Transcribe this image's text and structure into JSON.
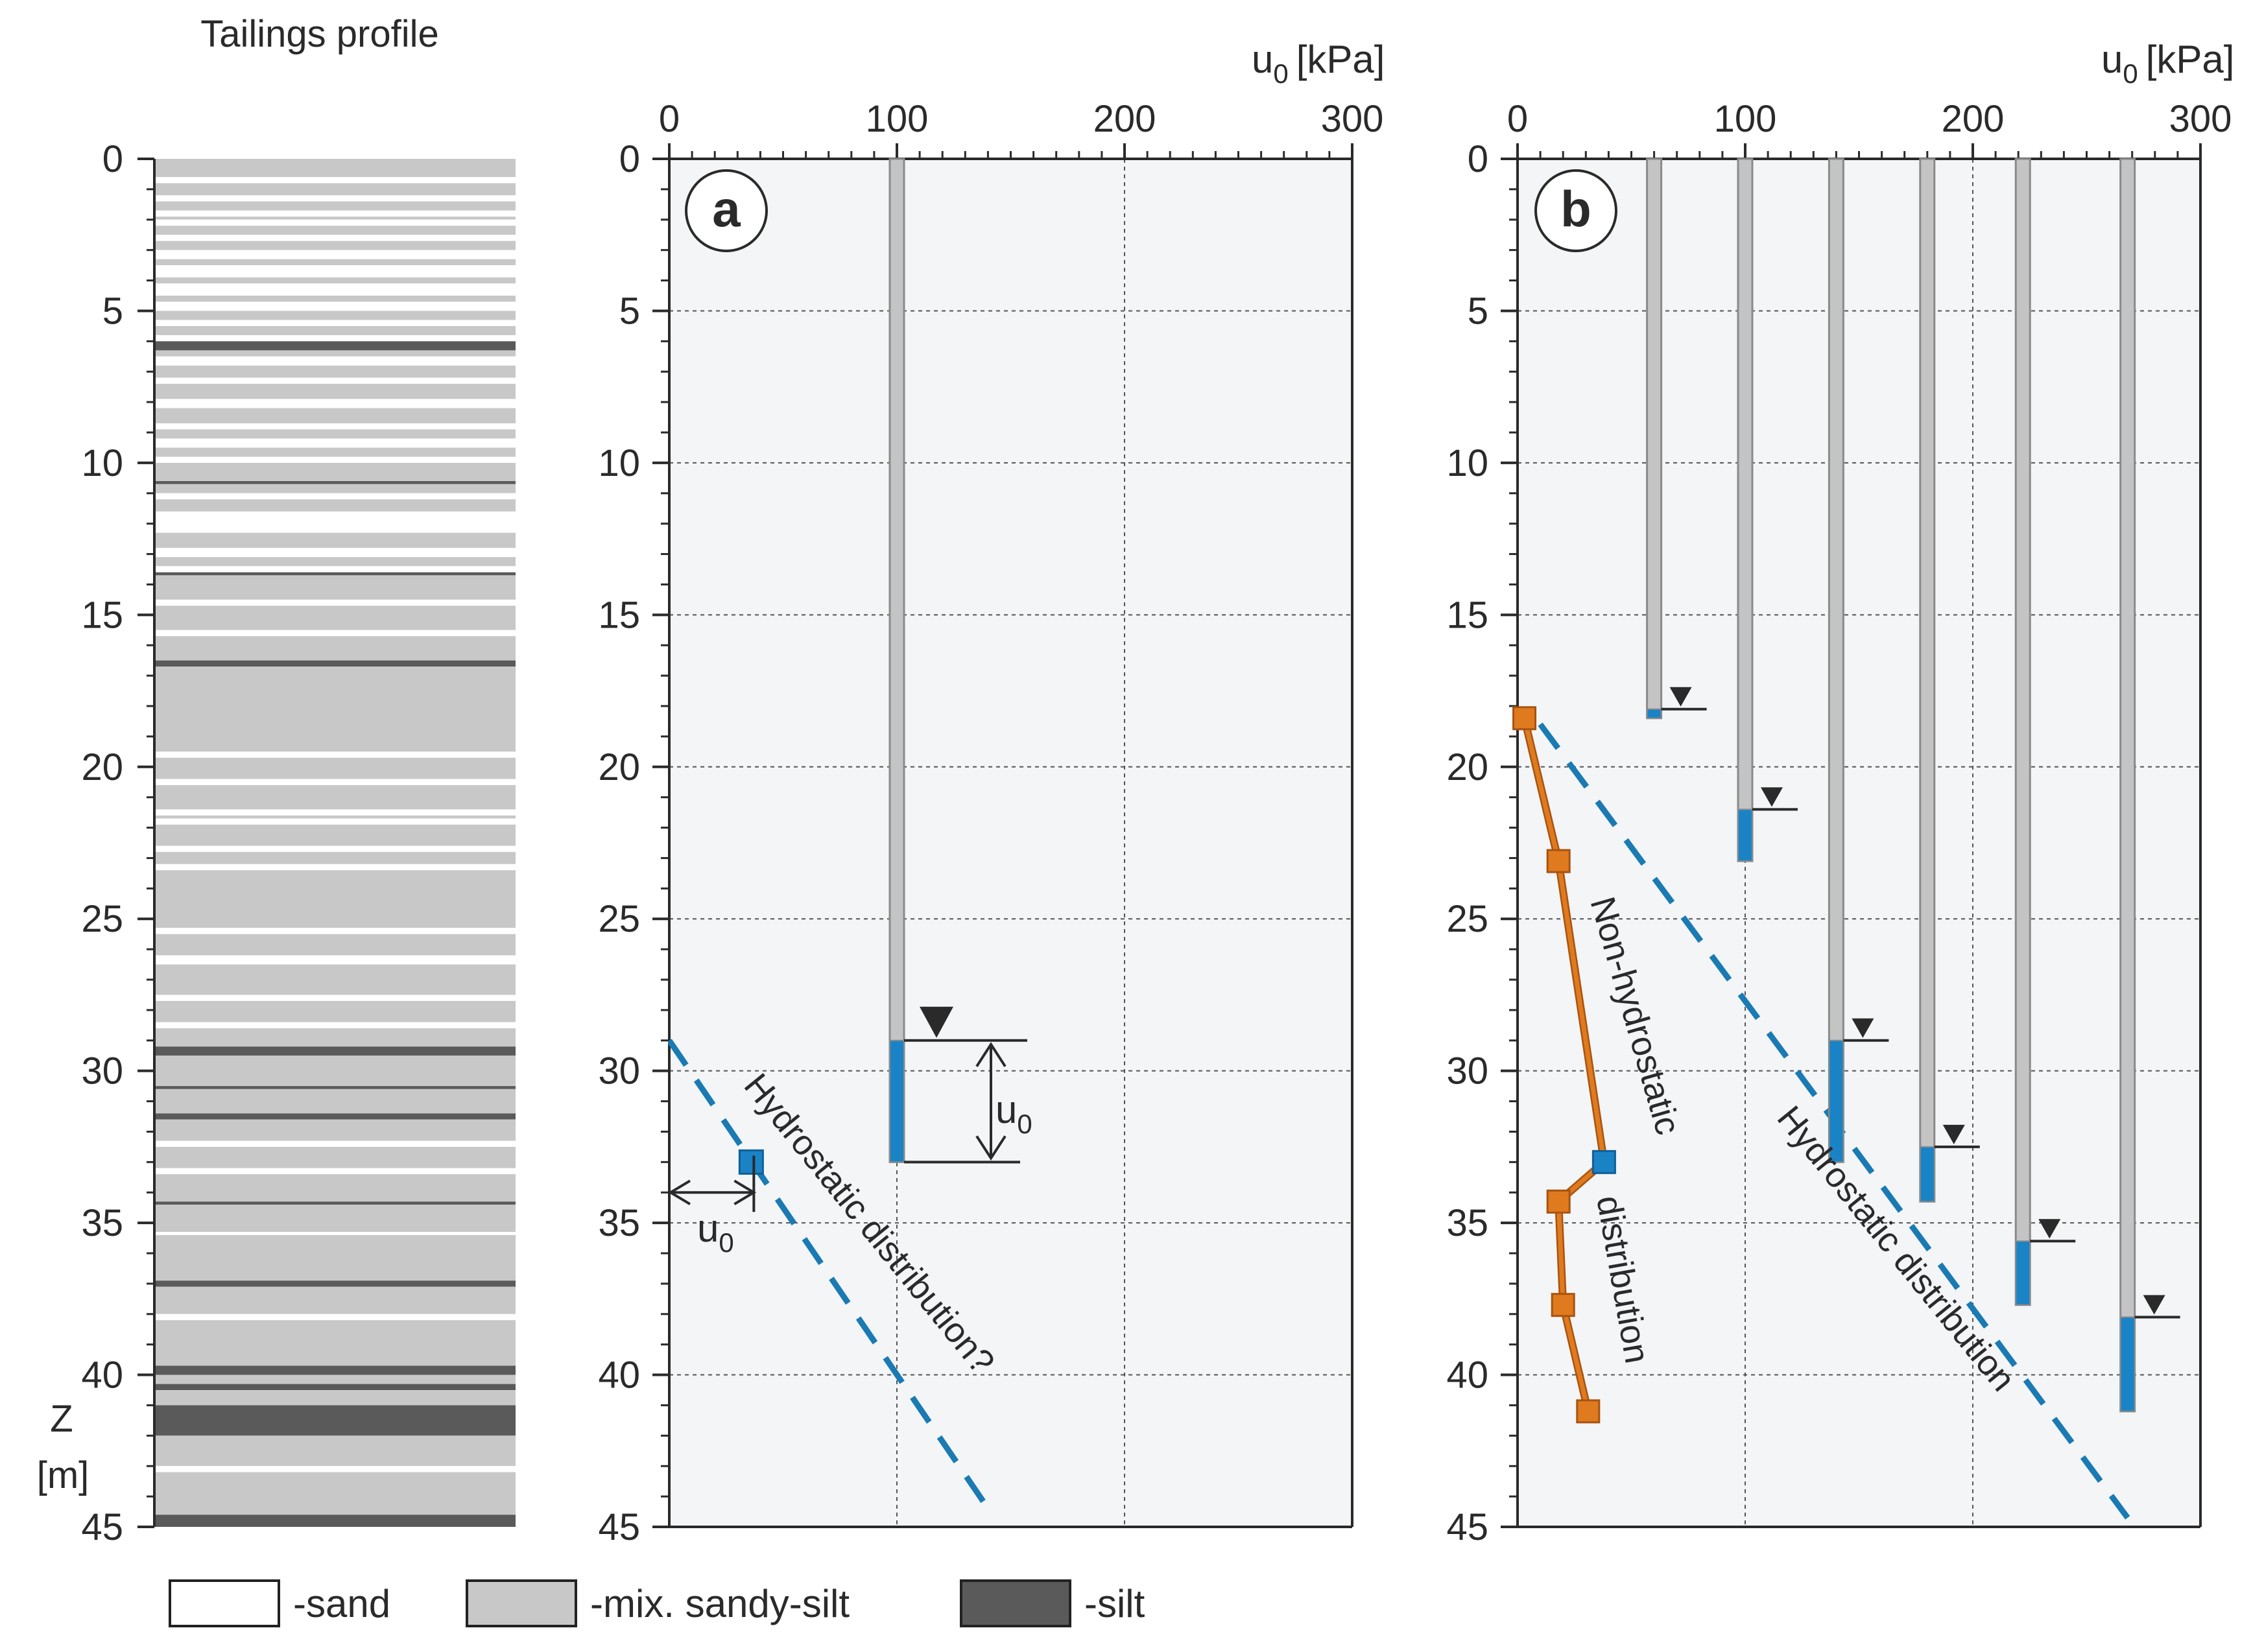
{
  "chart_data": [
    {
      "type": "profile",
      "title": "Tailings profile",
      "ylabel": "Z",
      "yunit": "[m]",
      "ylim": [
        0,
        45
      ],
      "yticks": [
        0,
        5,
        10,
        15,
        20,
        25,
        30,
        35,
        40,
        45
      ],
      "legend": [
        {
          "label": "-sand",
          "color": "#ffffff"
        },
        {
          "label": "-mix. sandy-silt",
          "color": "#c8c8c8"
        },
        {
          "label": "-silt",
          "color": "#5a5a5a"
        }
      ],
      "layers": [
        {
          "top": 0.0,
          "bottom": 0.6,
          "material": "mix"
        },
        {
          "top": 0.6,
          "bottom": 0.8,
          "material": "sand"
        },
        {
          "top": 0.8,
          "bottom": 1.2,
          "material": "mix"
        },
        {
          "top": 1.2,
          "bottom": 1.4,
          "material": "sand"
        },
        {
          "top": 1.4,
          "bottom": 1.7,
          "material": "mix"
        },
        {
          "top": 1.7,
          "bottom": 1.9,
          "material": "sand"
        },
        {
          "top": 1.9,
          "bottom": 2.0,
          "material": "mix"
        },
        {
          "top": 2.0,
          "bottom": 2.2,
          "material": "sand"
        },
        {
          "top": 2.2,
          "bottom": 2.5,
          "material": "mix"
        },
        {
          "top": 2.5,
          "bottom": 2.7,
          "material": "sand"
        },
        {
          "top": 2.7,
          "bottom": 3.0,
          "material": "mix"
        },
        {
          "top": 3.0,
          "bottom": 3.3,
          "material": "sand"
        },
        {
          "top": 3.3,
          "bottom": 3.5,
          "material": "mix"
        },
        {
          "top": 3.5,
          "bottom": 3.9,
          "material": "sand"
        },
        {
          "top": 3.9,
          "bottom": 4.1,
          "material": "mix"
        },
        {
          "top": 4.1,
          "bottom": 4.5,
          "material": "sand"
        },
        {
          "top": 4.5,
          "bottom": 4.7,
          "material": "mix"
        },
        {
          "top": 4.7,
          "bottom": 5.0,
          "material": "sand"
        },
        {
          "top": 5.0,
          "bottom": 5.3,
          "material": "mix"
        },
        {
          "top": 5.3,
          "bottom": 5.5,
          "material": "sand"
        },
        {
          "top": 5.5,
          "bottom": 5.8,
          "material": "mix"
        },
        {
          "top": 5.8,
          "bottom": 6.0,
          "material": "sand"
        },
        {
          "top": 6.0,
          "bottom": 6.3,
          "material": "silt"
        },
        {
          "top": 6.3,
          "bottom": 6.5,
          "material": "mix"
        },
        {
          "top": 6.5,
          "bottom": 6.8,
          "material": "sand"
        },
        {
          "top": 6.8,
          "bottom": 7.2,
          "material": "mix"
        },
        {
          "top": 7.2,
          "bottom": 7.4,
          "material": "sand"
        },
        {
          "top": 7.4,
          "bottom": 7.9,
          "material": "mix"
        },
        {
          "top": 7.9,
          "bottom": 8.2,
          "material": "sand"
        },
        {
          "top": 8.2,
          "bottom": 8.7,
          "material": "mix"
        },
        {
          "top": 8.7,
          "bottom": 8.9,
          "material": "sand"
        },
        {
          "top": 8.9,
          "bottom": 9.2,
          "material": "mix"
        },
        {
          "top": 9.2,
          "bottom": 9.5,
          "material": "sand"
        },
        {
          "top": 9.5,
          "bottom": 9.8,
          "material": "mix"
        },
        {
          "top": 9.8,
          "bottom": 10.0,
          "material": "sand"
        },
        {
          "top": 10.0,
          "bottom": 10.6,
          "material": "mix"
        },
        {
          "top": 10.6,
          "bottom": 10.7,
          "material": "silt"
        },
        {
          "top": 10.7,
          "bottom": 11.0,
          "material": "mix"
        },
        {
          "top": 11.0,
          "bottom": 11.2,
          "material": "sand"
        },
        {
          "top": 11.2,
          "bottom": 11.6,
          "material": "mix"
        },
        {
          "top": 11.6,
          "bottom": 12.3,
          "material": "sand"
        },
        {
          "top": 12.3,
          "bottom": 12.8,
          "material": "mix"
        },
        {
          "top": 12.8,
          "bottom": 13.1,
          "material": "sand"
        },
        {
          "top": 13.1,
          "bottom": 13.4,
          "material": "mix"
        },
        {
          "top": 13.4,
          "bottom": 13.6,
          "material": "sand"
        },
        {
          "top": 13.6,
          "bottom": 13.7,
          "material": "silt"
        },
        {
          "top": 13.7,
          "bottom": 14.5,
          "material": "mix"
        },
        {
          "top": 14.5,
          "bottom": 14.7,
          "material": "sand"
        },
        {
          "top": 14.7,
          "bottom": 15.5,
          "material": "mix"
        },
        {
          "top": 15.5,
          "bottom": 15.7,
          "material": "sand"
        },
        {
          "top": 15.7,
          "bottom": 16.5,
          "material": "mix"
        },
        {
          "top": 16.5,
          "bottom": 16.7,
          "material": "silt"
        },
        {
          "top": 16.7,
          "bottom": 19.5,
          "material": "mix"
        },
        {
          "top": 19.5,
          "bottom": 19.7,
          "material": "sand"
        },
        {
          "top": 19.7,
          "bottom": 20.4,
          "material": "mix"
        },
        {
          "top": 20.4,
          "bottom": 20.6,
          "material": "sand"
        },
        {
          "top": 20.6,
          "bottom": 21.4,
          "material": "mix"
        },
        {
          "top": 21.4,
          "bottom": 21.6,
          "material": "sand"
        },
        {
          "top": 21.6,
          "bottom": 21.7,
          "material": "mix"
        },
        {
          "top": 21.7,
          "bottom": 21.9,
          "material": "sand"
        },
        {
          "top": 21.9,
          "bottom": 22.6,
          "material": "mix"
        },
        {
          "top": 22.6,
          "bottom": 22.8,
          "material": "sand"
        },
        {
          "top": 22.8,
          "bottom": 23.2,
          "material": "mix"
        },
        {
          "top": 23.2,
          "bottom": 23.4,
          "material": "sand"
        },
        {
          "top": 23.4,
          "bottom": 25.3,
          "material": "mix"
        },
        {
          "top": 25.3,
          "bottom": 25.5,
          "material": "sand"
        },
        {
          "top": 25.5,
          "bottom": 26.2,
          "material": "mix"
        },
        {
          "top": 26.2,
          "bottom": 26.5,
          "material": "sand"
        },
        {
          "top": 26.5,
          "bottom": 27.5,
          "material": "mix"
        },
        {
          "top": 27.5,
          "bottom": 27.7,
          "material": "sand"
        },
        {
          "top": 27.7,
          "bottom": 28.4,
          "material": "mix"
        },
        {
          "top": 28.4,
          "bottom": 28.6,
          "material": "sand"
        },
        {
          "top": 28.6,
          "bottom": 29.2,
          "material": "mix"
        },
        {
          "top": 29.2,
          "bottom": 29.5,
          "material": "silt"
        },
        {
          "top": 29.5,
          "bottom": 30.5,
          "material": "mix"
        },
        {
          "top": 30.5,
          "bottom": 30.6,
          "material": "silt"
        },
        {
          "top": 30.6,
          "bottom": 31.4,
          "material": "mix"
        },
        {
          "top": 31.4,
          "bottom": 31.6,
          "material": "silt"
        },
        {
          "top": 31.6,
          "bottom": 32.3,
          "material": "mix"
        },
        {
          "top": 32.3,
          "bottom": 32.5,
          "material": "sand"
        },
        {
          "top": 32.5,
          "bottom": 33.2,
          "material": "mix"
        },
        {
          "top": 33.2,
          "bottom": 33.4,
          "material": "sand"
        },
        {
          "top": 33.4,
          "bottom": 34.3,
          "material": "mix"
        },
        {
          "top": 34.3,
          "bottom": 34.4,
          "material": "silt"
        },
        {
          "top": 34.4,
          "bottom": 35.3,
          "material": "mix"
        },
        {
          "top": 35.3,
          "bottom": 35.4,
          "material": "sand"
        },
        {
          "top": 35.4,
          "bottom": 36.9,
          "material": "mix"
        },
        {
          "top": 36.9,
          "bottom": 37.1,
          "material": "silt"
        },
        {
          "top": 37.1,
          "bottom": 38.0,
          "material": "mix"
        },
        {
          "top": 38.0,
          "bottom": 38.2,
          "material": "sand"
        },
        {
          "top": 38.2,
          "bottom": 39.7,
          "material": "mix"
        },
        {
          "top": 39.7,
          "bottom": 40.0,
          "material": "silt"
        },
        {
          "top": 40.0,
          "bottom": 40.3,
          "material": "mix"
        },
        {
          "top": 40.3,
          "bottom": 40.5,
          "material": "silt"
        },
        {
          "top": 40.5,
          "bottom": 41.0,
          "material": "mix"
        },
        {
          "top": 41.0,
          "bottom": 42.0,
          "material": "silt"
        },
        {
          "top": 42.0,
          "bottom": 43.0,
          "material": "mix"
        },
        {
          "top": 43.0,
          "bottom": 43.2,
          "material": "sand"
        },
        {
          "top": 43.2,
          "bottom": 44.6,
          "material": "mix"
        },
        {
          "top": 44.6,
          "bottom": 45.0,
          "material": "silt"
        }
      ]
    },
    {
      "type": "piezometer",
      "panel_label": "a",
      "xlabel": "u",
      "xlabel_sub": "0",
      "xlabel_unit": "[kPa]",
      "xlim": [
        0,
        300
      ],
      "xticks": [
        0,
        100,
        200,
        300
      ],
      "ylim": [
        0,
        45
      ],
      "yticks": [
        0,
        5,
        10,
        15,
        20,
        25,
        30,
        35,
        40,
        45
      ],
      "piezometers": [
        {
          "u0": 100,
          "tip_depth": 33,
          "water_level": 29
        }
      ],
      "measured_points": [
        {
          "u0": 36,
          "z": 33
        }
      ],
      "hydrostatic_line": {
        "from": {
          "u0": 0,
          "z": 29
        },
        "to": {
          "u0": 141,
          "z": 44.5
        }
      },
      "annotations": {
        "hydrostatic": "Hydrostatic distribution?",
        "u0_symbol": "u",
        "u0_sub": "0"
      }
    },
    {
      "type": "piezometer",
      "panel_label": "b",
      "xlabel": "u",
      "xlabel_sub": "0",
      "xlabel_unit": "[kPa]",
      "xlim": [
        0,
        300
      ],
      "xticks": [
        0,
        100,
        200,
        300
      ],
      "ylim": [
        0,
        45
      ],
      "yticks": [
        0,
        5,
        10,
        15,
        20,
        25,
        30,
        35,
        40,
        45
      ],
      "piezometers": [
        {
          "u0": 60,
          "tip_depth": 18.4,
          "water_level": 18.1
        },
        {
          "u0": 100,
          "tip_depth": 23.1,
          "water_level": 21.4
        },
        {
          "u0": 140,
          "tip_depth": 33.0,
          "water_level": 29.0
        },
        {
          "u0": 180,
          "tip_depth": 34.3,
          "water_level": 32.5
        },
        {
          "u0": 222,
          "tip_depth": 37.7,
          "water_level": 35.6
        },
        {
          "u0": 268,
          "tip_depth": 41.2,
          "water_level": 38.1
        }
      ],
      "non_hydrostatic_points": [
        {
          "u0": 3,
          "z": 18.4
        },
        {
          "u0": 18,
          "z": 23.1
        },
        {
          "u0": 38,
          "z": 33.0
        },
        {
          "u0": 18,
          "z": 34.3
        },
        {
          "u0": 20,
          "z": 37.7
        },
        {
          "u0": 31,
          "z": 41.2
        }
      ],
      "hydrostatic_line": {
        "from": {
          "u0": 10,
          "z": 18.6
        },
        "to": {
          "u0": 268,
          "z": 44.7
        }
      },
      "annotations": {
        "non_hydrostatic_1": "Non-hydrostatic",
        "non_hydrostatic_2": "distribution",
        "hydrostatic": "Hydrostatic distribution"
      }
    }
  ],
  "colors": {
    "axis": "#2a2a2a",
    "panel_bg": "#f3f5f7",
    "grid": "#555555",
    "pipe": "#c4c4c4",
    "pipe_edge": "#8a8a8a",
    "water": "#1a83c6",
    "hydro_line": "#1a7ab3",
    "orange": "#e07a1f",
    "orange_edge": "#a85310",
    "sand": "#ffffff",
    "mix": "#c8c8c8",
    "silt": "#5a5a5a"
  }
}
